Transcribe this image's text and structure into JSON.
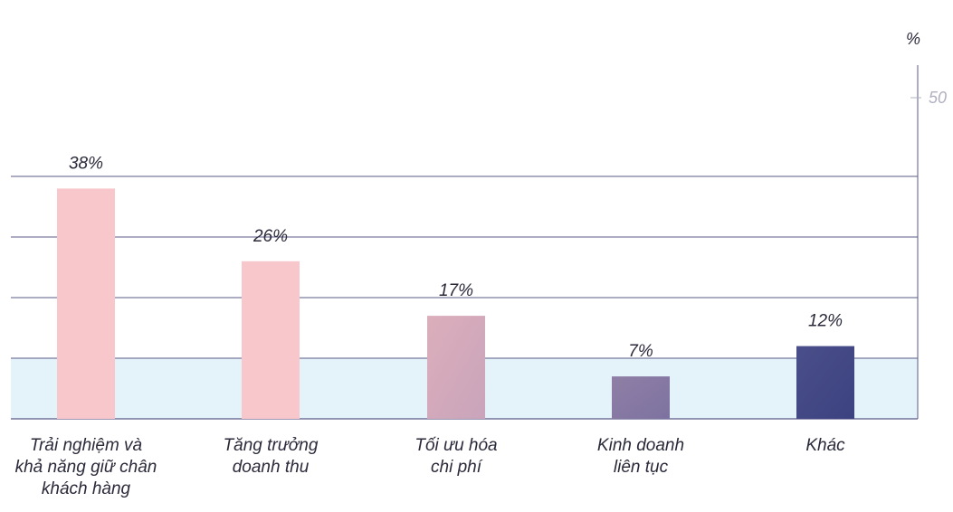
{
  "chart_data": {
    "type": "bar",
    "categories": [
      [
        "Trải nghiệm và",
        "khả năng giữ chân",
        "khách hàng"
      ],
      [
        "Tăng trưởng",
        "doanh thu"
      ],
      [
        "Tối ưu hóa",
        "chi phí"
      ],
      [
        "Kinh doanh",
        "liên tục"
      ],
      [
        "Khác"
      ]
    ],
    "values": [
      38,
      26,
      17,
      7,
      12
    ],
    "value_labels": [
      "38%",
      "26%",
      "17%",
      "7%",
      "12%"
    ],
    "unit_label": "%",
    "ytick_labels": [
      {
        "value": 50,
        "label": "50"
      }
    ],
    "ylim": [
      0,
      55
    ],
    "gridlines": [
      10,
      20,
      30,
      40
    ],
    "highlight_band": [
      0,
      10
    ],
    "colors": [
      "#f7c7cc",
      "#f7c7cc",
      "#dcaebb",
      "#8f7fa6",
      "#4a4f8a"
    ],
    "gradient_end": [
      "#f7c7cc",
      "#f7c7cc",
      "#c9a4bb",
      "#7d72a0",
      "#3c4280"
    ],
    "grid_color": "#5a5a86",
    "band_color": "#e4f3f9"
  }
}
